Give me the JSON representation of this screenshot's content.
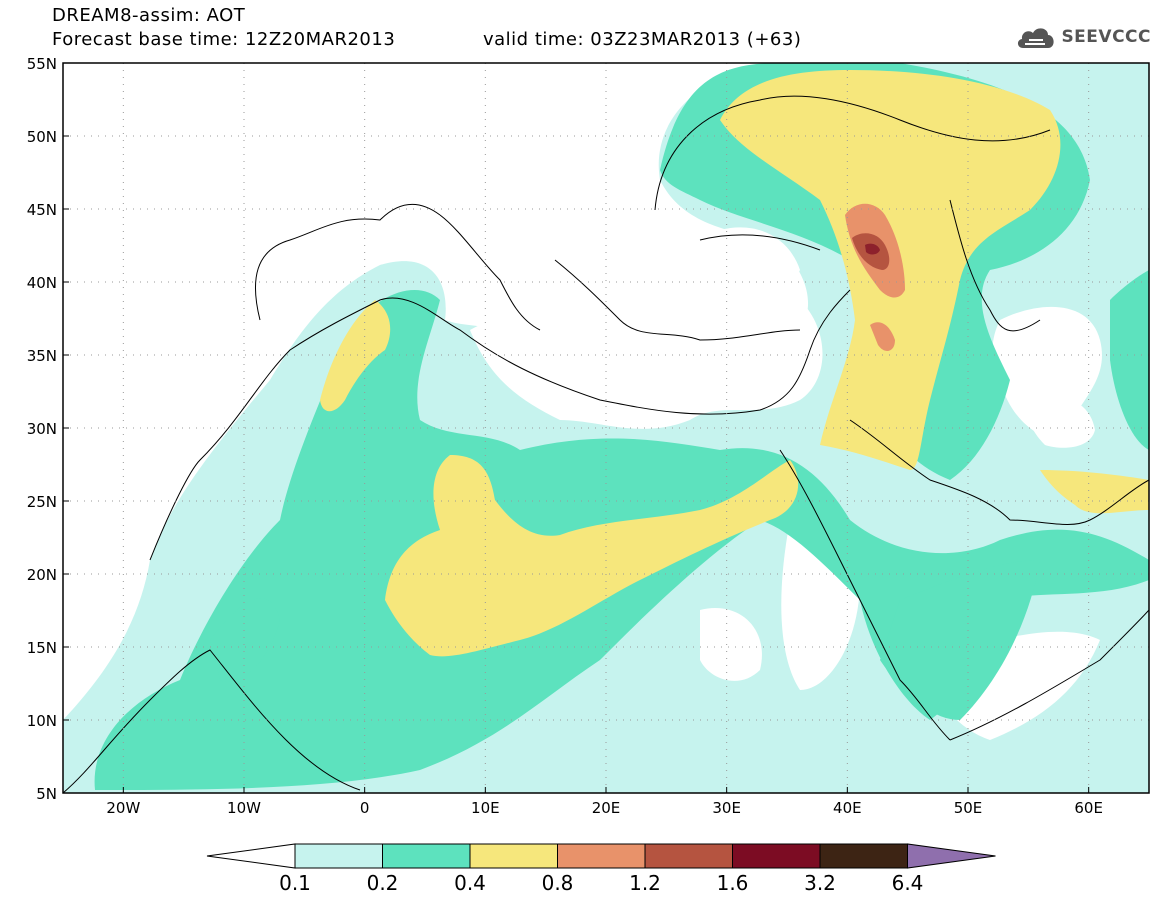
{
  "header": {
    "title": "DREAM8-assim: AOT",
    "base_time": "Forecast base time: 12Z20MAR2013",
    "valid_time": "valid time: 03Z23MAR2013 (+63)",
    "logo_text": "SEEVCCC",
    "logo_icon": "cloud-icon"
  },
  "map": {
    "lat_labels": [
      "55N",
      "50N",
      "45N",
      "40N",
      "35N",
      "30N",
      "25N",
      "20N",
      "15N",
      "10N",
      "5N"
    ],
    "lat_values": [
      55,
      50,
      45,
      40,
      35,
      30,
      25,
      20,
      15,
      10,
      5
    ],
    "lon_labels": [
      "20W",
      "10W",
      "0",
      "10E",
      "20E",
      "30E",
      "40E",
      "50E",
      "60E"
    ],
    "lon_values": [
      -20,
      -10,
      0,
      10,
      20,
      30,
      40,
      50,
      60
    ],
    "lon_range": [
      -25,
      65
    ],
    "lat_range": [
      5,
      55
    ],
    "grid": "dotted"
  },
  "colorbar": {
    "labels": [
      "0.1",
      "0.2",
      "0.4",
      "0.8",
      "1.2",
      "1.6",
      "3.2",
      "6.4"
    ],
    "colors": [
      "#c6f3ee",
      "#5de2be",
      "#f6e77c",
      "#e8926a",
      "#b55440",
      "#7c0c23",
      "#3d2414",
      "#8f6fad"
    ],
    "under_color": "#ffffff"
  }
}
